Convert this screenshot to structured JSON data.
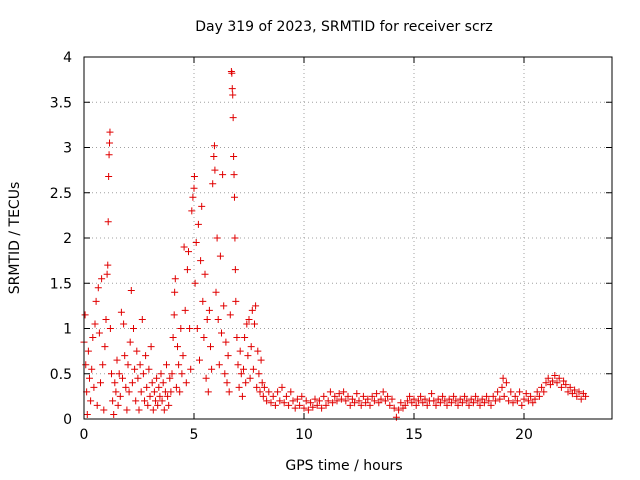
{
  "chart_data": {
    "type": "scatter",
    "title": "Day 319 of 2023, SRMTID for receiver scrz",
    "xlabel": "GPS time / hours",
    "ylabel": "SRMTID / TECUs",
    "xlim": [
      0,
      24
    ],
    "ylim": [
      0,
      4
    ],
    "xticks": [
      0,
      5,
      10,
      15,
      20
    ],
    "yticks": [
      0,
      0.5,
      1,
      1.5,
      2,
      2.5,
      3,
      3.5,
      4
    ],
    "grid": true,
    "marker": "plus",
    "marker_color": "#e00000",
    "series": [
      {
        "name": "SRMTID",
        "points": [
          [
            0.0,
            0.85
          ],
          [
            0.05,
            1.15
          ],
          [
            0.08,
            0.6
          ],
          [
            0.12,
            0.3
          ],
          [
            0.15,
            0.05
          ],
          [
            0.2,
            0.75
          ],
          [
            0.25,
            0.45
          ],
          [
            0.3,
            0.2
          ],
          [
            0.35,
            0.55
          ],
          [
            0.4,
            0.9
          ],
          [
            0.45,
            0.35
          ],
          [
            0.5,
            1.05
          ],
          [
            0.55,
            1.3
          ],
          [
            0.6,
            0.15
          ],
          [
            0.65,
            1.45
          ],
          [
            0.7,
            0.95
          ],
          [
            0.75,
            0.4
          ],
          [
            0.8,
            1.55
          ],
          [
            0.85,
            0.6
          ],
          [
            0.9,
            0.1
          ],
          [
            0.95,
            0.8
          ],
          [
            1.0,
            1.1
          ],
          [
            1.05,
            1.6
          ],
          [
            1.08,
            1.7
          ],
          [
            1.1,
            2.18
          ],
          [
            1.12,
            2.68
          ],
          [
            1.14,
            2.92
          ],
          [
            1.16,
            3.05
          ],
          [
            1.18,
            3.17
          ],
          [
            1.2,
            1.0
          ],
          [
            1.25,
            0.5
          ],
          [
            1.3,
            0.2
          ],
          [
            1.35,
            0.05
          ],
          [
            1.4,
            0.4
          ],
          [
            1.45,
            0.3
          ],
          [
            1.5,
            0.65
          ],
          [
            1.55,
            0.15
          ],
          [
            1.6,
            0.5
          ],
          [
            1.65,
            0.25
          ],
          [
            1.7,
            1.18
          ],
          [
            1.75,
            0.45
          ],
          [
            1.8,
            1.05
          ],
          [
            1.85,
            0.7
          ],
          [
            1.9,
            0.35
          ],
          [
            1.95,
            0.1
          ],
          [
            2.0,
            0.6
          ],
          [
            2.05,
            0.3
          ],
          [
            2.1,
            0.85
          ],
          [
            2.15,
            1.42
          ],
          [
            2.2,
            0.4
          ],
          [
            2.25,
            1.0
          ],
          [
            2.3,
            0.55
          ],
          [
            2.35,
            0.2
          ],
          [
            2.4,
            0.75
          ],
          [
            2.45,
            0.45
          ],
          [
            2.5,
            0.1
          ],
          [
            2.55,
            0.6
          ],
          [
            2.6,
            0.3
          ],
          [
            2.65,
            1.1
          ],
          [
            2.7,
            0.5
          ],
          [
            2.75,
            0.2
          ],
          [
            2.8,
            0.7
          ],
          [
            2.85,
            0.35
          ],
          [
            2.9,
            0.15
          ],
          [
            2.95,
            0.55
          ],
          [
            3.0,
            0.25
          ],
          [
            3.05,
            0.8
          ],
          [
            3.1,
            0.4
          ],
          [
            3.15,
            0.1
          ],
          [
            3.2,
            0.3
          ],
          [
            3.25,
            0.2
          ],
          [
            3.3,
            0.45
          ],
          [
            3.35,
            0.15
          ],
          [
            3.4,
            0.35
          ],
          [
            3.45,
            0.25
          ],
          [
            3.5,
            0.5
          ],
          [
            3.55,
            0.2
          ],
          [
            3.6,
            0.4
          ],
          [
            3.65,
            0.1
          ],
          [
            3.7,
            0.3
          ],
          [
            3.75,
            0.6
          ],
          [
            3.8,
            0.25
          ],
          [
            3.85,
            0.15
          ],
          [
            3.9,
            0.45
          ],
          [
            3.95,
            0.3
          ],
          [
            4.0,
            0.5
          ],
          [
            4.05,
            0.9
          ],
          [
            4.1,
            1.15
          ],
          [
            4.12,
            1.4
          ],
          [
            4.15,
            1.55
          ],
          [
            4.2,
            0.35
          ],
          [
            4.25,
            0.8
          ],
          [
            4.3,
            0.6
          ],
          [
            4.35,
            0.3
          ],
          [
            4.4,
            1.0
          ],
          [
            4.45,
            0.5
          ],
          [
            4.5,
            0.7
          ],
          [
            4.55,
            1.9
          ],
          [
            4.6,
            1.2
          ],
          [
            4.65,
            0.4
          ],
          [
            4.7,
            1.65
          ],
          [
            4.75,
            1.85
          ],
          [
            4.8,
            1.0
          ],
          [
            4.85,
            0.55
          ],
          [
            4.9,
            2.3
          ],
          [
            4.95,
            2.45
          ],
          [
            5.0,
            2.55
          ],
          [
            5.02,
            2.68
          ],
          [
            5.05,
            1.5
          ],
          [
            5.1,
            1.95
          ],
          [
            5.15,
            1.0
          ],
          [
            5.2,
            2.15
          ],
          [
            5.25,
            0.65
          ],
          [
            5.3,
            1.75
          ],
          [
            5.35,
            2.35
          ],
          [
            5.4,
            1.3
          ],
          [
            5.45,
            0.9
          ],
          [
            5.5,
            1.6
          ],
          [
            5.55,
            0.45
          ],
          [
            5.6,
            1.1
          ],
          [
            5.65,
            0.3
          ],
          [
            5.7,
            1.2
          ],
          [
            5.75,
            0.8
          ],
          [
            5.8,
            0.55
          ],
          [
            5.85,
            2.6
          ],
          [
            5.9,
            2.9
          ],
          [
            5.93,
            3.02
          ],
          [
            5.95,
            2.75
          ],
          [
            6.0,
            1.4
          ],
          [
            6.05,
            2.0
          ],
          [
            6.1,
            1.1
          ],
          [
            6.15,
            0.6
          ],
          [
            6.2,
            1.8
          ],
          [
            6.25,
            0.95
          ],
          [
            6.3,
            2.7
          ],
          [
            6.35,
            1.25
          ],
          [
            6.4,
            0.5
          ],
          [
            6.45,
            0.85
          ],
          [
            6.5,
            0.4
          ],
          [
            6.55,
            0.7
          ],
          [
            6.6,
            0.3
          ],
          [
            6.65,
            1.15
          ],
          [
            6.7,
            3.84
          ],
          [
            6.72,
            3.82
          ],
          [
            6.74,
            3.65
          ],
          [
            6.76,
            3.58
          ],
          [
            6.78,
            3.33
          ],
          [
            6.8,
            2.9
          ],
          [
            6.82,
            2.7
          ],
          [
            6.84,
            2.45
          ],
          [
            6.86,
            2.0
          ],
          [
            6.88,
            1.65
          ],
          [
            6.9,
            1.3
          ],
          [
            6.95,
            0.9
          ],
          [
            7.0,
            0.6
          ],
          [
            7.05,
            0.35
          ],
          [
            7.1,
            0.75
          ],
          [
            7.15,
            0.5
          ],
          [
            7.2,
            0.25
          ],
          [
            7.25,
            0.55
          ],
          [
            7.3,
            0.9
          ],
          [
            7.35,
            0.4
          ],
          [
            7.4,
            1.05
          ],
          [
            7.45,
            0.7
          ],
          [
            7.5,
            1.1
          ],
          [
            7.55,
            0.45
          ],
          [
            7.6,
            0.8
          ],
          [
            7.65,
            1.2
          ],
          [
            7.7,
            0.55
          ],
          [
            7.75,
            1.05
          ],
          [
            7.8,
            1.25
          ],
          [
            7.85,
            0.35
          ],
          [
            7.9,
            0.75
          ],
          [
            7.95,
            0.5
          ],
          [
            8.0,
            0.3
          ],
          [
            8.05,
            0.65
          ],
          [
            8.1,
            0.4
          ],
          [
            8.15,
            0.25
          ],
          [
            8.2,
            0.35
          ],
          [
            8.3,
            0.2
          ],
          [
            8.4,
            0.3
          ],
          [
            8.5,
            0.18
          ],
          [
            8.6,
            0.25
          ],
          [
            8.7,
            0.15
          ],
          [
            8.8,
            0.3
          ],
          [
            8.9,
            0.2
          ],
          [
            9.0,
            0.35
          ],
          [
            9.1,
            0.18
          ],
          [
            9.2,
            0.25
          ],
          [
            9.3,
            0.15
          ],
          [
            9.4,
            0.3
          ],
          [
            9.5,
            0.2
          ],
          [
            9.6,
            0.12
          ],
          [
            9.7,
            0.22
          ],
          [
            9.8,
            0.15
          ],
          [
            9.9,
            0.25
          ],
          [
            10.0,
            0.12
          ],
          [
            10.1,
            0.2
          ],
          [
            10.2,
            0.1
          ],
          [
            10.3,
            0.18
          ],
          [
            10.4,
            0.13
          ],
          [
            10.5,
            0.22
          ],
          [
            10.6,
            0.15
          ],
          [
            10.7,
            0.2
          ],
          [
            10.8,
            0.12
          ],
          [
            10.9,
            0.25
          ],
          [
            11.0,
            0.15
          ],
          [
            11.1,
            0.2
          ],
          [
            11.2,
            0.3
          ],
          [
            11.3,
            0.18
          ],
          [
            11.4,
            0.25
          ],
          [
            11.5,
            0.2
          ],
          [
            11.6,
            0.28
          ],
          [
            11.7,
            0.22
          ],
          [
            11.8,
            0.3
          ],
          [
            11.9,
            0.2
          ],
          [
            12.0,
            0.25
          ],
          [
            12.1,
            0.15
          ],
          [
            12.2,
            0.22
          ],
          [
            12.3,
            0.18
          ],
          [
            12.4,
            0.28
          ],
          [
            12.5,
            0.2
          ],
          [
            12.6,
            0.15
          ],
          [
            12.7,
            0.25
          ],
          [
            12.8,
            0.18
          ],
          [
            12.9,
            0.22
          ],
          [
            13.0,
            0.15
          ],
          [
            13.1,
            0.25
          ],
          [
            13.2,
            0.2
          ],
          [
            13.3,
            0.28
          ],
          [
            13.4,
            0.18
          ],
          [
            13.5,
            0.22
          ],
          [
            13.6,
            0.3
          ],
          [
            13.7,
            0.2
          ],
          [
            13.8,
            0.25
          ],
          [
            13.9,
            0.15
          ],
          [
            14.0,
            0.22
          ],
          [
            14.1,
            0.12
          ],
          [
            14.2,
            0.02
          ],
          [
            14.3,
            0.1
          ],
          [
            14.4,
            0.18
          ],
          [
            14.5,
            0.12
          ],
          [
            14.6,
            0.15
          ],
          [
            14.7,
            0.2
          ],
          [
            14.8,
            0.25
          ],
          [
            14.9,
            0.18
          ],
          [
            15.0,
            0.22
          ],
          [
            15.1,
            0.15
          ],
          [
            15.2,
            0.2
          ],
          [
            15.3,
            0.25
          ],
          [
            15.4,
            0.18
          ],
          [
            15.5,
            0.22
          ],
          [
            15.6,
            0.15
          ],
          [
            15.7,
            0.2
          ],
          [
            15.8,
            0.28
          ],
          [
            15.9,
            0.2
          ],
          [
            16.0,
            0.15
          ],
          [
            16.1,
            0.22
          ],
          [
            16.2,
            0.18
          ],
          [
            16.3,
            0.25
          ],
          [
            16.4,
            0.2
          ],
          [
            16.5,
            0.15
          ],
          [
            16.6,
            0.22
          ],
          [
            16.7,
            0.18
          ],
          [
            16.8,
            0.25
          ],
          [
            16.9,
            0.2
          ],
          [
            17.0,
            0.15
          ],
          [
            17.1,
            0.22
          ],
          [
            17.2,
            0.18
          ],
          [
            17.3,
            0.25
          ],
          [
            17.4,
            0.2
          ],
          [
            17.5,
            0.15
          ],
          [
            17.6,
            0.22
          ],
          [
            17.7,
            0.18
          ],
          [
            17.8,
            0.25
          ],
          [
            17.9,
            0.2
          ],
          [
            18.0,
            0.15
          ],
          [
            18.1,
            0.22
          ],
          [
            18.2,
            0.18
          ],
          [
            18.3,
            0.25
          ],
          [
            18.4,
            0.2
          ],
          [
            18.5,
            0.15
          ],
          [
            18.6,
            0.25
          ],
          [
            18.7,
            0.2
          ],
          [
            18.8,
            0.3
          ],
          [
            18.9,
            0.22
          ],
          [
            19.0,
            0.35
          ],
          [
            19.05,
            0.45
          ],
          [
            19.1,
            0.25
          ],
          [
            19.2,
            0.4
          ],
          [
            19.3,
            0.2
          ],
          [
            19.4,
            0.3
          ],
          [
            19.5,
            0.18
          ],
          [
            19.6,
            0.25
          ],
          [
            19.7,
            0.2
          ],
          [
            19.8,
            0.3
          ],
          [
            19.9,
            0.15
          ],
          [
            20.0,
            0.22
          ],
          [
            20.1,
            0.28
          ],
          [
            20.2,
            0.2
          ],
          [
            20.3,
            0.25
          ],
          [
            20.4,
            0.18
          ],
          [
            20.5,
            0.22
          ],
          [
            20.6,
            0.3
          ],
          [
            20.7,
            0.25
          ],
          [
            20.8,
            0.35
          ],
          [
            20.9,
            0.3
          ],
          [
            21.0,
            0.4
          ],
          [
            21.1,
            0.45
          ],
          [
            21.2,
            0.38
          ],
          [
            21.3,
            0.42
          ],
          [
            21.4,
            0.48
          ],
          [
            21.5,
            0.4
          ],
          [
            21.6,
            0.45
          ],
          [
            21.7,
            0.35
          ],
          [
            21.8,
            0.42
          ],
          [
            21.9,
            0.38
          ],
          [
            22.0,
            0.3
          ],
          [
            22.1,
            0.35
          ],
          [
            22.2,
            0.28
          ],
          [
            22.3,
            0.32
          ],
          [
            22.4,
            0.25
          ],
          [
            22.5,
            0.3
          ],
          [
            22.6,
            0.22
          ],
          [
            22.7,
            0.28
          ],
          [
            22.8,
            0.25
          ]
        ]
      }
    ]
  }
}
